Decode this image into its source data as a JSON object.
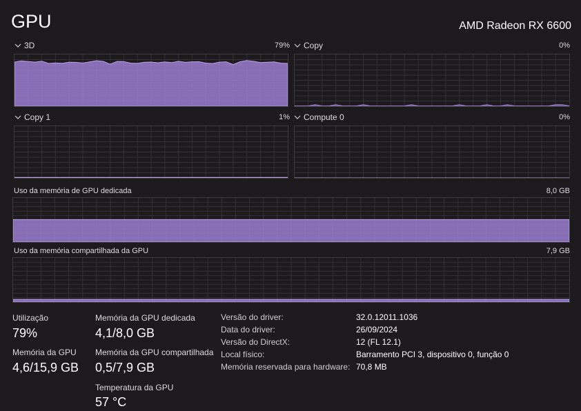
{
  "header": {
    "title": "GPU",
    "adapter": "AMD Radeon RX 6600"
  },
  "engines": [
    {
      "name": "3D",
      "percent": "79%",
      "level": 0.79
    },
    {
      "name": "Copy",
      "percent": "0%",
      "level": 0.0
    },
    {
      "name": "Copy 1",
      "percent": "1%",
      "level": 0.01
    },
    {
      "name": "Compute 0",
      "percent": "0%",
      "level": 0.0
    }
  ],
  "memory": {
    "dedicated": {
      "label": "Uso da memória de GPU dedicada",
      "max": "8,0 GB",
      "level": 0.51
    },
    "shared": {
      "label": "Uso da memória compartilhada da GPU",
      "max": "7,9 GB",
      "level": 0.06
    }
  },
  "stats": {
    "utilization": {
      "label": "Utilização",
      "value": "79%"
    },
    "gpu_memory": {
      "label": "Memória da GPU",
      "value": "4,6/15,9 GB"
    },
    "dedicated_memory": {
      "label": "Memória da GPU dedicada",
      "value": "4,1/8,0 GB"
    },
    "shared_memory": {
      "label": "Memória da GPU compartilhada",
      "value": "0,5/7,9 GB"
    },
    "temperature": {
      "label": "Temperatura da GPU",
      "value": "57 °C"
    }
  },
  "info": [
    {
      "key": "Versão do driver:",
      "value": "32.0.12011.1036"
    },
    {
      "key": "Data do driver:",
      "value": "26/09/2024"
    },
    {
      "key": "Versão do DirectX:",
      "value": "12 (FL 12.1)"
    },
    {
      "key": "Local físico:",
      "value": "Barramento PCI 3, dispositivo 0, função 0"
    },
    {
      "key": "Memória reservada para hardware:",
      "value": "70,8 MB"
    }
  ],
  "colors": {
    "accent": "#9b7fd0",
    "grid": "#333036",
    "background": "#1c1a1d"
  }
}
